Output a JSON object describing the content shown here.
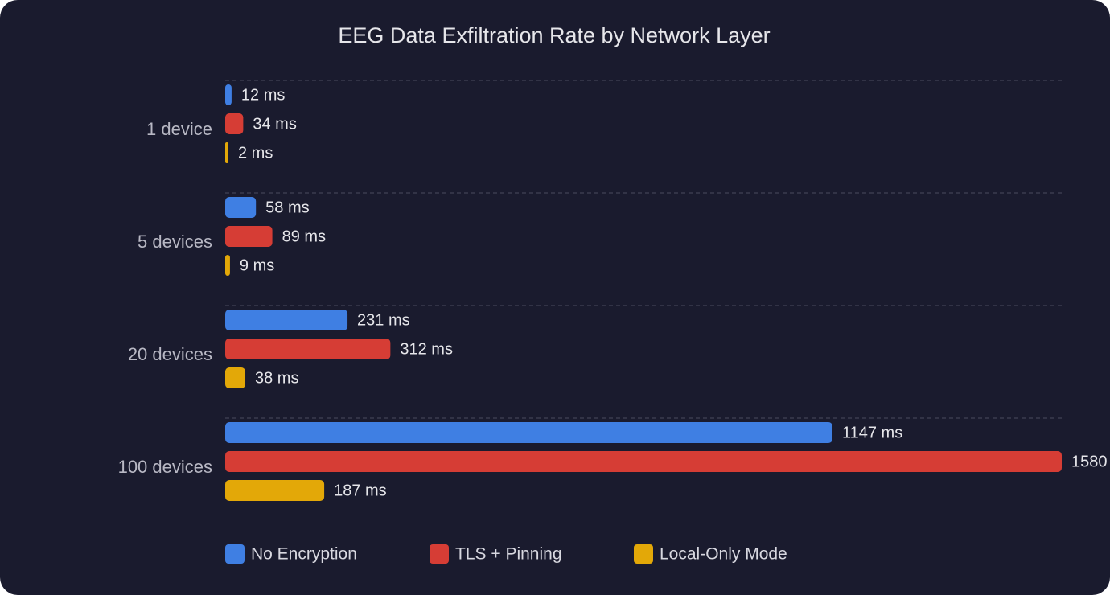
{
  "chart_data": {
    "type": "hbar",
    "title": "EEG Data Exfiltration Rate by Network Layer",
    "categories": [
      "1 device",
      "5 devices",
      "20 devices",
      "100 devices"
    ],
    "series": [
      {
        "name": "No Encryption",
        "color": "#3f7fe3",
        "values": [
          12,
          58,
          231,
          1147
        ],
        "value_labels": [
          "12 ms",
          "58 ms",
          "231 ms",
          "1147 ms"
        ]
      },
      {
        "name": "TLS + Pinning",
        "color": "#d63d35",
        "values": [
          34,
          89,
          312,
          1580
        ],
        "value_labels": [
          "34 ms",
          "89 ms",
          "312 ms",
          "1580"
        ]
      },
      {
        "name": "Local-Only Mode",
        "color": "#e3a808",
        "values": [
          2,
          9,
          38,
          187
        ],
        "value_labels": [
          "2 ms",
          "9 ms",
          "38 ms",
          "187 ms"
        ]
      }
    ],
    "grid": true,
    "legend": "bottom"
  }
}
